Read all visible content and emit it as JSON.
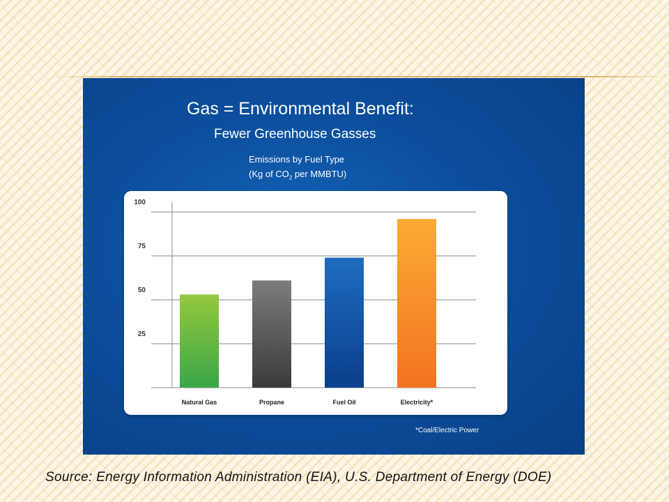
{
  "slide": {
    "title": "Gas = Environmental Benefit:",
    "subtitle": "Fewer Greenhouse Gasses",
    "footnote": "*Coal/Electric Power",
    "source": "Source: Energy Information Administration (EIA), U.S. Department of Energy (DOE)"
  },
  "chart_data": {
    "type": "bar",
    "title": "Emissions by Fuel Type",
    "units": {
      "prefix": "(Kg of CO",
      "subscript": "2",
      "suffix": " per MMBTU)"
    },
    "categories": [
      "Natural Gas",
      "Propane",
      "Fuel Oil",
      "Electricity*"
    ],
    "values": [
      53,
      61,
      74,
      96
    ],
    "ylim": [
      0,
      100
    ],
    "yticks": [
      {
        "value": 25,
        "label": "25"
      },
      {
        "value": 50,
        "label": "50"
      },
      {
        "value": 75,
        "label": "75"
      },
      {
        "value": 100,
        "label": "100"
      }
    ],
    "grid": true,
    "xlabel": "",
    "ylabel": "",
    "colors": {
      "Natural Gas": [
        "#94c83d",
        "#3aa648"
      ],
      "Propane": [
        "#7c7c7c",
        "#3a3a3a"
      ],
      "Fuel Oil": [
        "#1f6cc0",
        "#0a3f8c"
      ],
      "Electricity*": [
        "#fbab35",
        "#f37321"
      ]
    }
  }
}
